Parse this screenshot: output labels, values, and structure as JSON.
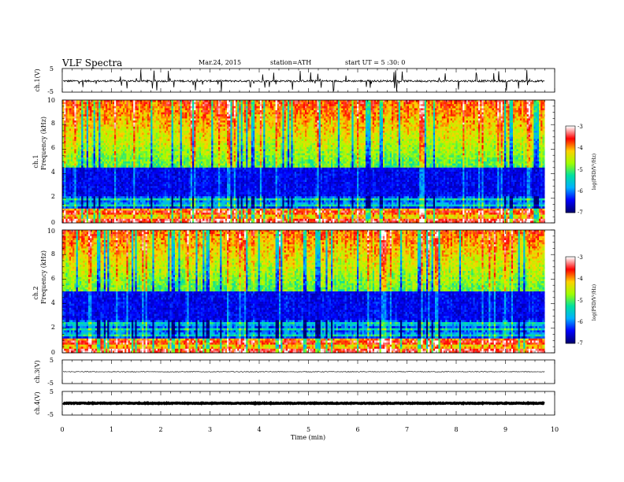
{
  "header": {
    "title": "VLF  Spectra",
    "date": "Mar.24, 2015",
    "station": "station=ATH",
    "start_ut": "start  UT  =   5  :30: 0"
  },
  "chart_data": [
    {
      "type": "line",
      "name": "ch1-waveform",
      "ylabel": "ch.1(V)",
      "ylim": [
        -5,
        5
      ],
      "yticks": [
        "5",
        "-5"
      ],
      "xlim": [
        0,
        10
      ],
      "x": [
        0,
        9.8
      ],
      "y_mean": -0.3,
      "y_noise": 0.4,
      "y_spike_min": -5,
      "y_spike_max": 4.5
    },
    {
      "type": "heatmap",
      "name": "ch1-spectrogram",
      "ylabel_top": "ch.1",
      "ylabel": "Frequency  (kHz)",
      "xlim": [
        0,
        10
      ],
      "x_data_end": 9.8,
      "ylim": [
        0,
        10
      ],
      "yticks": [
        "0",
        "2",
        "4",
        "6",
        "8",
        "10"
      ],
      "dark_band_khz": [
        2.2,
        4.5
      ],
      "colorbar": {
        "label": "log(PSD/V²/Hz)",
        "range": [
          -7,
          -3
        ],
        "ticks": [
          "-3",
          "-4",
          "-5",
          "-6",
          "-7"
        ]
      }
    },
    {
      "type": "heatmap",
      "name": "ch2-spectrogram",
      "ylabel_top": "ch.2",
      "ylabel": "Frequency  (kHz)",
      "xlim": [
        0,
        10
      ],
      "x_data_end": 9.8,
      "ylim": [
        0,
        10
      ],
      "yticks": [
        "0",
        "2",
        "4",
        "6",
        "8",
        "10"
      ],
      "dark_band_khz": [
        2.6,
        5.0
      ],
      "colorbar": {
        "label": "log(PSD/V²/Hz)",
        "range": [
          -7,
          -3
        ],
        "ticks": [
          "-3",
          "-4",
          "-5",
          "-6",
          "-7"
        ]
      }
    },
    {
      "type": "line",
      "name": "ch3-waveform",
      "ylabel": "ch.3(V)",
      "ylim": [
        -5,
        5
      ],
      "yticks": [
        "5",
        "-5"
      ],
      "xlim": [
        0,
        10
      ],
      "x": [
        0,
        9.8
      ],
      "y_mean": 0,
      "y_noise": 0.15
    },
    {
      "type": "line",
      "name": "ch4-waveform",
      "ylabel": "ch.4(V)",
      "ylim": [
        -5,
        5
      ],
      "yticks": [
        "5",
        "-5"
      ],
      "xlim": [
        0,
        10
      ],
      "x": [
        0,
        9.8
      ],
      "y_mean": 0,
      "y_noise": 0.15,
      "xlabel": "Time  (min)",
      "xticks": [
        "0",
        "1",
        "2",
        "3",
        "4",
        "5",
        "6",
        "7",
        "8",
        "9",
        "10"
      ]
    }
  ],
  "colors": {
    "colormap": [
      "#000070",
      "#0000ff",
      "#00b0ff",
      "#00e0a0",
      "#a0ff00",
      "#ffd000",
      "#ff0000",
      "#ffffff"
    ]
  }
}
